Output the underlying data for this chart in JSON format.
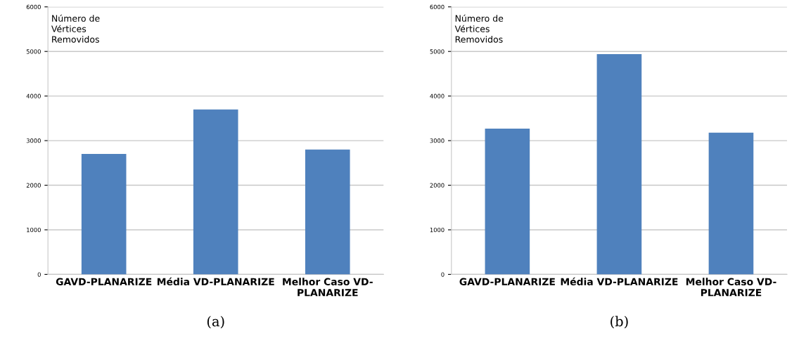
{
  "chart_data": [
    {
      "type": "bar",
      "ylabel": "Número de Vértices Removidos",
      "categories": [
        "GAVD-PLANARIZE",
        "Média VD-PLANARIZE",
        "Melhor Caso VD-PLANARIZE"
      ],
      "values": [
        2700,
        3700,
        2800
      ],
      "color": "#4f81bd",
      "ylim": [
        0,
        6000
      ],
      "yticks": [
        0,
        1000,
        2000,
        3000,
        4000,
        5000,
        6000
      ],
      "grid": "y",
      "annotations": [
        "(a)"
      ]
    },
    {
      "type": "bar",
      "ylabel": "Número de Vértices Removidos",
      "categories": [
        "GAVD-PLANARIZE",
        "Média VD-PLANARIZE",
        "Melhor Caso VD-PLANARIZE"
      ],
      "values": [
        3270,
        4940,
        3180
      ],
      "color": "#4f81bd",
      "ylim": [
        0,
        6000
      ],
      "yticks": [
        0,
        1000,
        2000,
        3000,
        4000,
        5000,
        6000
      ],
      "grid": "y",
      "annotations": [
        "(b)"
      ]
    }
  ]
}
